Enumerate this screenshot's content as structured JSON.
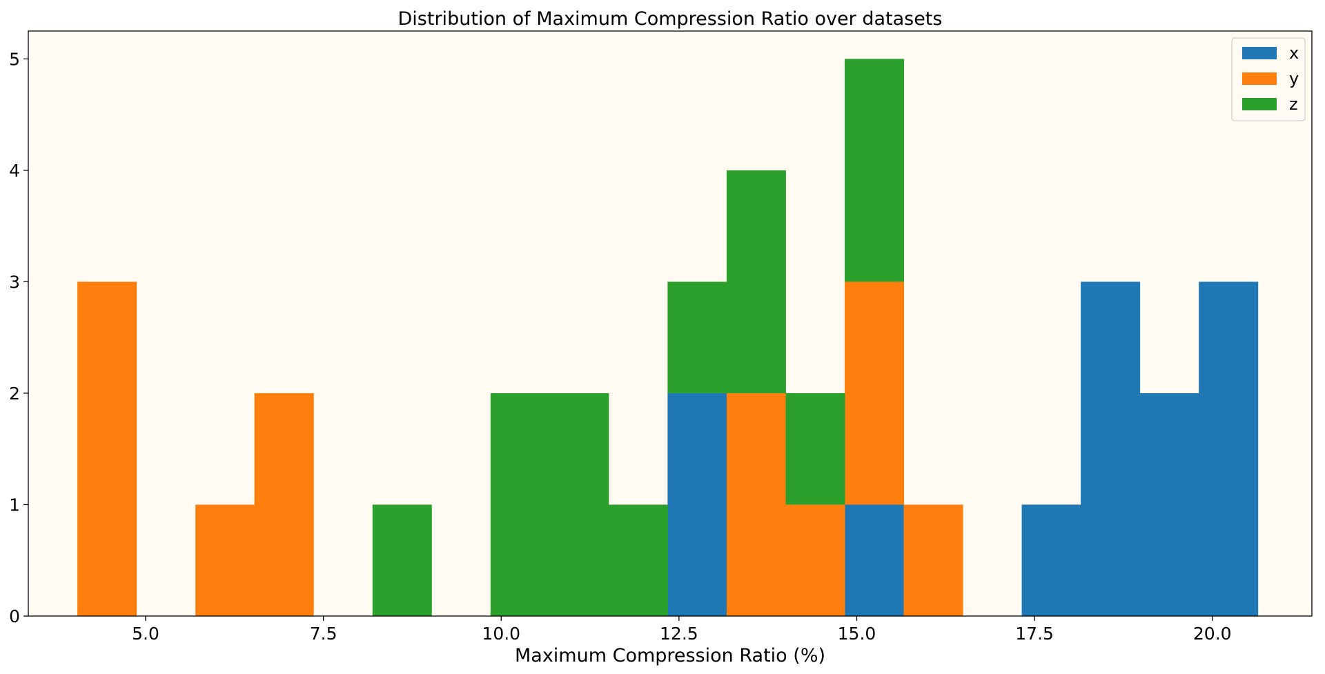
{
  "chart_data": {
    "type": "histogram",
    "title": "Distribution of Maximum Compression Ratio over datasets",
    "xlabel": "Maximum Compression Ratio (%)",
    "ylabel": "",
    "xlim": [
      3.35,
      21.4
    ],
    "ylim": [
      0,
      5.25
    ],
    "xticks": [
      5.0,
      7.5,
      10.0,
      12.5,
      15.0,
      17.5,
      20.0
    ],
    "xtick_labels": [
      "5.0",
      "7.5",
      "10.0",
      "12.5",
      "15.0",
      "17.5",
      "20.0"
    ],
    "yticks": [
      0,
      1,
      2,
      3,
      4,
      5
    ],
    "ytick_labels": [
      "0",
      "1",
      "2",
      "3",
      "4",
      "5"
    ],
    "bin_edges": [
      4.04,
      4.87,
      5.7,
      6.53,
      7.36,
      8.19,
      9.02,
      9.85,
      10.68,
      11.51,
      12.34,
      13.17,
      14.0,
      14.83,
      15.66,
      16.49,
      17.32,
      18.15,
      18.98,
      19.81,
      20.64
    ],
    "stacked": true,
    "series": [
      {
        "name": "x",
        "color": "#1f77b4",
        "counts": [
          0,
          0,
          0,
          0,
          0,
          0,
          0,
          0,
          0,
          0,
          2,
          0,
          0,
          1,
          0,
          0,
          1,
          3,
          2,
          3
        ]
      },
      {
        "name": "y",
        "color": "#ff7f0e",
        "counts": [
          3,
          0,
          1,
          2,
          0,
          0,
          0,
          0,
          0,
          0,
          0,
          2,
          1,
          2,
          1,
          0,
          0,
          0,
          0,
          0
        ]
      },
      {
        "name": "z",
        "color": "#2ca02c",
        "counts": [
          0,
          0,
          0,
          0,
          0,
          1,
          0,
          2,
          2,
          1,
          1,
          2,
          1,
          2,
          0,
          0,
          0,
          0,
          0,
          0
        ]
      }
    ],
    "legend_position": "top-right",
    "background_color": "#fffbf3",
    "grid": false
  }
}
